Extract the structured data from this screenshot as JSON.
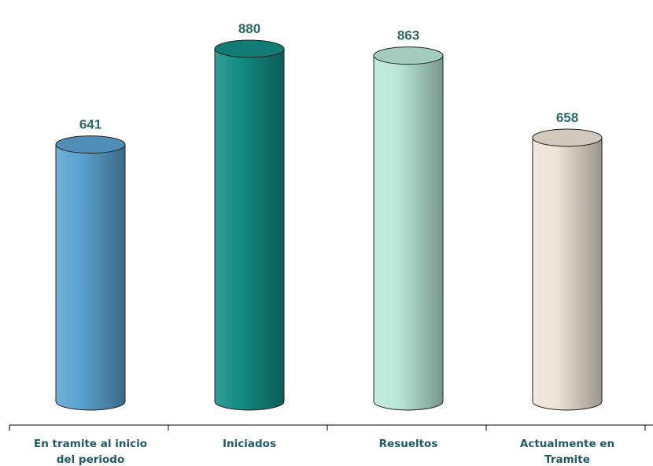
{
  "chart_data": {
    "type": "bar",
    "categories": [
      [
        "En tramite al inicio",
        "del periodo"
      ],
      [
        "Iniciados"
      ],
      [
        "Resueltos"
      ],
      [
        "Actualmente en",
        "Tramite"
      ]
    ],
    "values": [
      641,
      880,
      863,
      658
    ],
    "data_labels": [
      "641",
      "880",
      "863",
      "658"
    ],
    "colors": [
      "#5aa3d0",
      "#138d84",
      "#b8e8d8",
      "#ede5d6"
    ],
    "title": "",
    "xlabel": "",
    "ylabel": "",
    "ylim": [
      0,
      900
    ],
    "grid": false,
    "legend": "none",
    "style": "3d-cylinder"
  }
}
